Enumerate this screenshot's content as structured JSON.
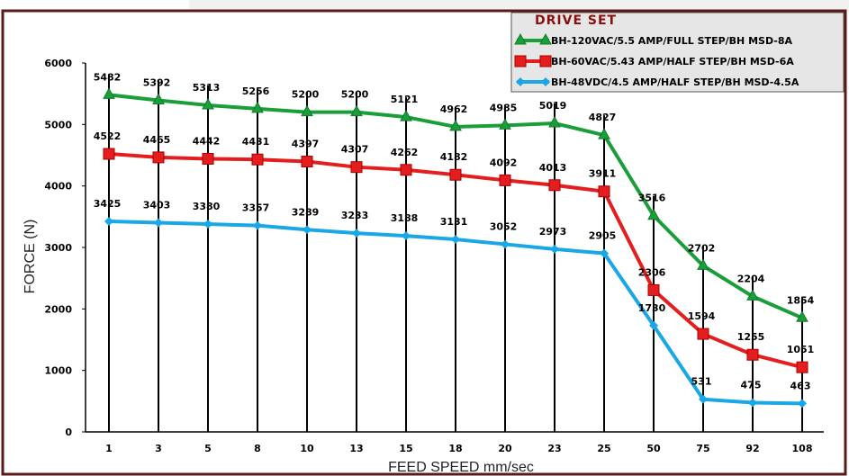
{
  "chart_data": {
    "type": "line",
    "xlabel": "FEED SPEED mm/sec",
    "ylabel": "FORCE (N)",
    "ylim": [
      0,
      6000
    ],
    "yticks": [
      "0",
      "1000",
      "2000",
      "3000",
      "4000",
      "5000",
      "6000"
    ],
    "categories": [
      "1",
      "3",
      "5",
      "8",
      "10",
      "13",
      "15",
      "18",
      "20",
      "23",
      "25",
      "50",
      "75",
      "92",
      "108"
    ],
    "grid": false,
    "legend": {
      "title": "DRIVE SET",
      "placement": "top-right"
    },
    "series": [
      {
        "name": "BH-120VAC/5.5 AMP/FULL STEP/BH MSD-8A",
        "color": "#1a9e3a",
        "marker": "triangle",
        "values": [
          5482,
          5392,
          5313,
          5256,
          5200,
          5200,
          5121,
          4962,
          4985,
          5019,
          4827,
          3516,
          2702,
          2204,
          1854
        ],
        "labels": [
          "5482",
          "5392",
          "5313",
          "5256",
          "5200",
          "5200",
          "5121",
          "4962",
          "4985",
          "5019",
          "4827",
          "3516",
          "2702",
          "2204",
          "1854"
        ]
      },
      {
        "name": "BH-60VAC/5.43 AMP/HALF STEP/BH MSD-6A",
        "color": "#e41e1e",
        "marker": "square",
        "values": [
          4522,
          4465,
          4442,
          4431,
          4397,
          4307,
          4262,
          4182,
          4092,
          4013,
          3911,
          2306,
          1594,
          1255,
          1051
        ],
        "labels": [
          "4522",
          "4465",
          "4442",
          "4431",
          "4397",
          "4307",
          "4262",
          "4182",
          "4092",
          "4013",
          "3911",
          "2306",
          "1594",
          "1255",
          "1051"
        ]
      },
      {
        "name": "BH-48VDC/4.5 AMP/HALF STEP/BH MSD-4.5A",
        "color": "#1aa7e6",
        "marker": "diamond",
        "values": [
          3425,
          3403,
          3380,
          3357,
          3289,
          3233,
          3188,
          3131,
          3052,
          2973,
          2905,
          1730,
          531,
          475,
          463
        ],
        "labels": [
          "3425",
          "3403",
          "3380",
          "3357",
          "3289",
          "3233",
          "3188",
          "3131",
          "3052",
          "2973",
          "2905",
          "1730",
          "531",
          "475",
          "463"
        ]
      }
    ]
  },
  "colors": {
    "frame": "#5a1a1a",
    "legend_bg": "#e6e6e6",
    "legend_title": "#8b0f0f",
    "stem": "#000000"
  }
}
